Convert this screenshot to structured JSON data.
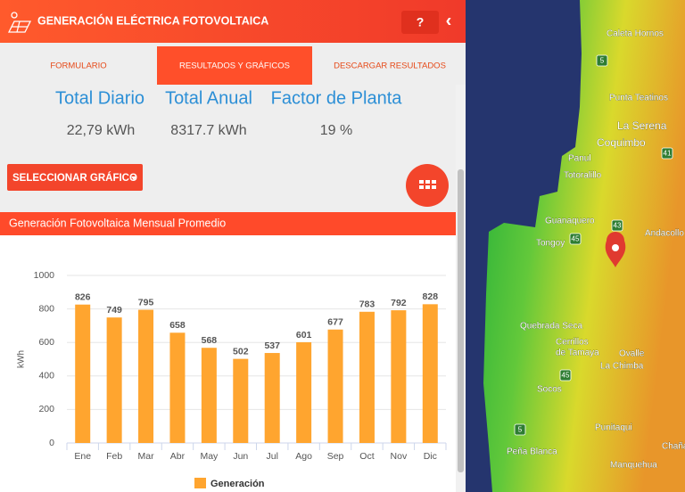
{
  "header": {
    "title": "GENERACIÓN ELÉCTRICA FOTOVOLTAICA",
    "help": "?",
    "collapse": "‹"
  },
  "tabs": [
    "FORMULARIO",
    "RESULTADOS Y GRÁFICOS",
    "DESCARGAR RESULTADOS"
  ],
  "stats": [
    {
      "label": "Total Diario",
      "value": "22,79 kWh"
    },
    {
      "label": "Total Anual",
      "value": "8317.7 kWh"
    },
    {
      "label": "Factor de Planta",
      "value": "19 %"
    }
  ],
  "button": "SELECCIONAR GRÁFICO",
  "chart_data": {
    "type": "bar",
    "title": "Generación Fotovoltaica Mensual Promedio",
    "y_label": "kWh",
    "categories": [
      "Ene",
      "Feb",
      "Mar",
      "Abr",
      "May",
      "Jun",
      "Jul",
      "Ago",
      "Sep",
      "Oct",
      "Nov",
      "Dic"
    ],
    "series": [
      {
        "name": "Generación",
        "color": "#ffa52f",
        "values": [
          826,
          749,
          795,
          658,
          568,
          502,
          537,
          601,
          677,
          783,
          792,
          828
        ]
      }
    ],
    "ylim": [
      0,
      1000
    ],
    "yticks": [
      0,
      200,
      400,
      600,
      800,
      1000
    ],
    "grid": true,
    "legend": "bottom"
  },
  "map": {
    "labels": [
      "Caleta Hornos",
      "Punta Teatinos",
      "La Serena",
      "Coquimbo",
      "Panul",
      "Totoralillo",
      "Guanaquero",
      "Tongoy",
      "Andacollo",
      "Quebrada Seca",
      "Cerrillos",
      "de Tamaya",
      "Ovalle",
      "La Chimba",
      "Socos",
      "Punitaqui",
      "Peña Blanca",
      "Manquehua",
      "Chaña"
    ],
    "roads": [
      "5",
      "41",
      "43",
      "45",
      "45",
      "5"
    ]
  }
}
